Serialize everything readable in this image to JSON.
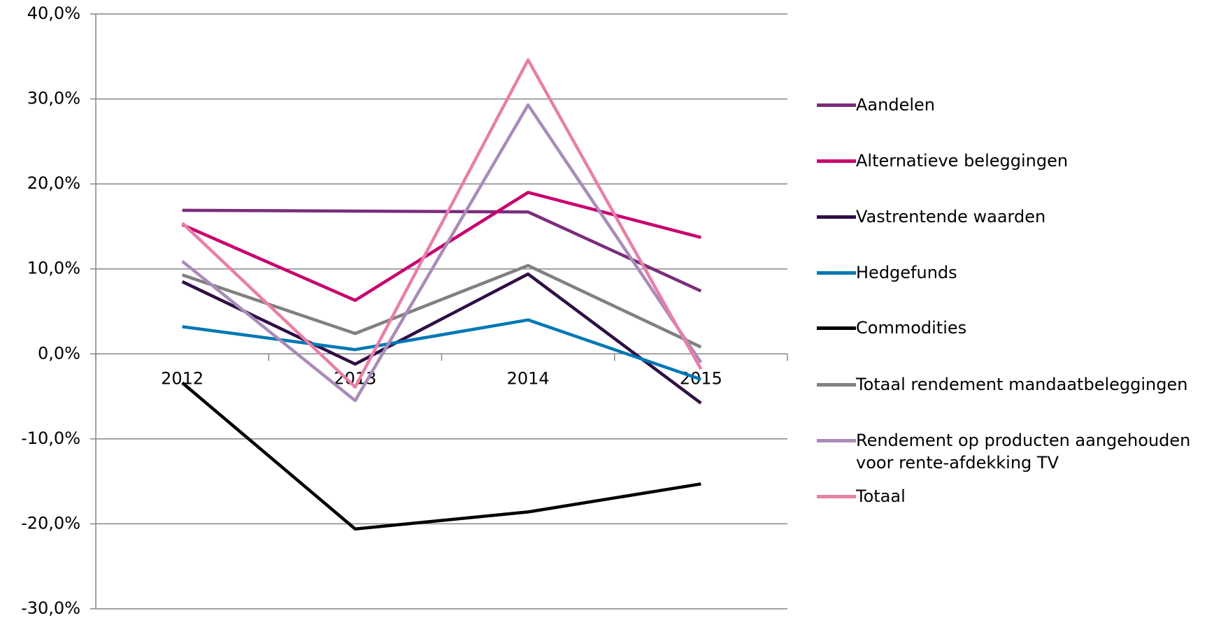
{
  "chart_data": {
    "type": "line",
    "categories": [
      "2012",
      "2013",
      "2014",
      "2015"
    ],
    "series": [
      {
        "name": "Aandelen",
        "color": "#7b2d7b",
        "values": [
          16.9,
          16.8,
          16.7,
          7.4
        ]
      },
      {
        "name": "Alternatieve beleggingen",
        "color": "#c8006e",
        "values": [
          15.2,
          6.3,
          19.0,
          13.7
        ]
      },
      {
        "name": "Vastrentende waarden",
        "color": "#2e0f45",
        "values": [
          8.5,
          -1.2,
          9.4,
          -5.8
        ]
      },
      {
        "name": "Hedgefunds",
        "color": "#0078b4",
        "values": [
          3.2,
          0.5,
          4.0,
          -3.0
        ]
      },
      {
        "name": "Commodities",
        "color": "#000000",
        "values": [
          -3.4,
          -20.6,
          -18.6,
          -15.3
        ]
      },
      {
        "name": "Totaal rendement mandaatbeleggingen",
        "color": "#808080",
        "values": [
          9.3,
          2.4,
          10.4,
          0.8
        ]
      },
      {
        "name": "Rendement op producten aangehouden voor rente-afdekking TV",
        "color": "#a98bb8",
        "values": [
          10.9,
          -5.5,
          29.3,
          -1.0
        ]
      },
      {
        "name": "Totaal",
        "color": "#e87fa8",
        "values": [
          15.4,
          -3.9,
          34.6,
          -1.8
        ]
      }
    ],
    "ylim": [
      -30,
      40
    ],
    "yticks": [
      {
        "value": -30,
        "label": "-30,0%"
      },
      {
        "value": -20,
        "label": "-20,0%"
      },
      {
        "value": -10,
        "label": "-10,0%"
      },
      {
        "value": 0,
        "label": "0,0%"
      },
      {
        "value": 10,
        "label": "10,0%"
      },
      {
        "value": 20,
        "label": "20,0%"
      },
      {
        "value": 30,
        "label": "30,0%"
      },
      {
        "value": 40,
        "label": "40,0%"
      }
    ],
    "grid": true,
    "legend": "right"
  }
}
